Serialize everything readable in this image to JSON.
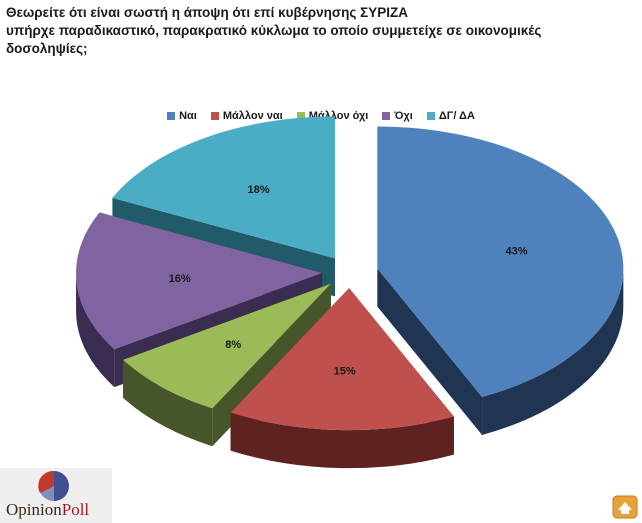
{
  "title": {
    "line1": "Θεωρείτε ότι είναι σωστή η άποψη ότι επί κυβέρνησης ΣΥΡΙΖΑ",
    "line2": "υπήρχε  παραδικαστικό, παρακρατικό  κύκλωμα  το οποίο συμμετείχε σε οικονομικές",
    "line3": "δοσοληψίες;"
  },
  "logo": {
    "part1": "Opinion",
    "part2": "Poll"
  },
  "chart_data": {
    "type": "pie",
    "style": "3d-exploded",
    "legend_position": "top",
    "categories": [
      "Ναι",
      "Μάλλον ναι",
      "Μάλλον όχι",
      "Όχι",
      "ΔΓ/ ΔΑ"
    ],
    "values": [
      43,
      15,
      8,
      16,
      18
    ],
    "labels": [
      "43%",
      "15%",
      "8%",
      "16%",
      "18%"
    ],
    "colors": [
      "#4f81bd",
      "#c0504d",
      "#9bbb59",
      "#8064a2",
      "#4bacc6"
    ],
    "side_colors": [
      "#1f3552",
      "#5e2321",
      "#46552a",
      "#3b2d52",
      "#215a69"
    ]
  }
}
